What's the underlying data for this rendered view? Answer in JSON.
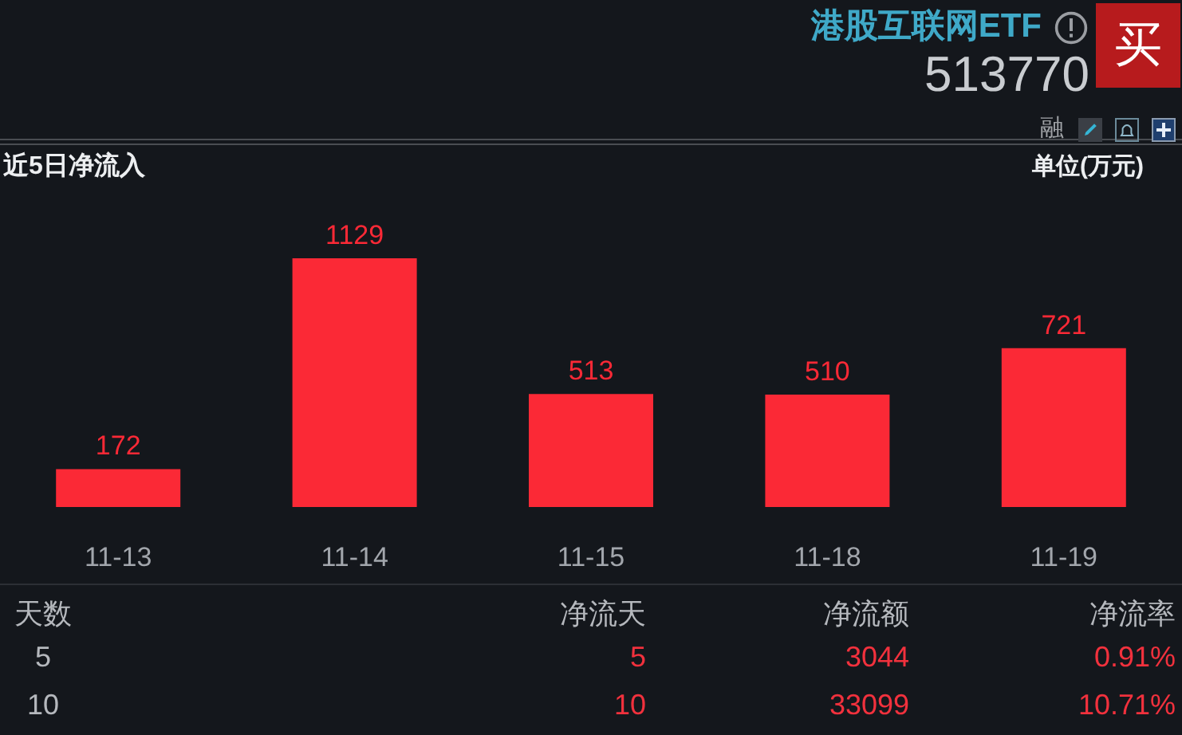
{
  "chart_data": {
    "type": "bar",
    "title": "港股互联网ETF",
    "subtitle": "513770",
    "ylabel": "单位(万元)",
    "annotations": [
      "近5日净流入",
      "买",
      "融",
      "天数",
      "净流天",
      "净流额",
      "净流率",
      "5",
      "5",
      "3044",
      "0.91%",
      "10",
      "10",
      "33099",
      "10.71%"
    ],
    "categories": [
      "11-13",
      "11-14",
      "11-15",
      "11-18",
      "11-19"
    ],
    "values": [
      172,
      1129,
      513,
      510,
      721
    ],
    "color": "#fb2936",
    "data_labels": true
  }
}
